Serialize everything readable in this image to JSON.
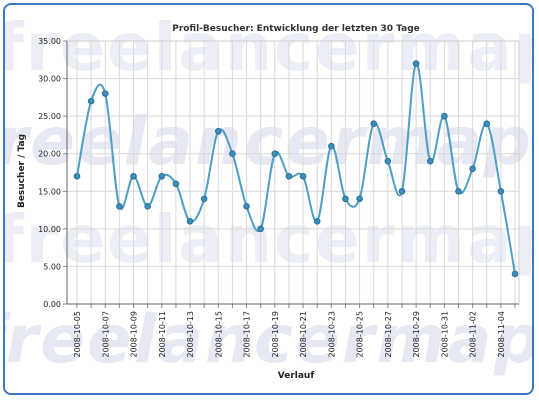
{
  "watermark": {
    "lines": [
      "freelancermapfree",
      "freelancermapfre",
      "freelancermapfree",
      "freelancermapfree"
    ]
  },
  "colors": {
    "frame": "#3e78c4",
    "line": "#4e9fc4",
    "marker": "#3b8fbd",
    "grid": "#d9d9d9"
  },
  "chart_data": {
    "type": "line",
    "title": "Profil-Besucher: Entwicklung der letzten 30 Tage",
    "xlabel": "Verlauf",
    "ylabel": "Besucher / Tag",
    "ylim": [
      0,
      35
    ],
    "yticks": [
      "0.00",
      "5.00",
      "10.00",
      "15.00",
      "20.00",
      "25.00",
      "30.00",
      "35.00"
    ],
    "grid": true,
    "smooth": true,
    "x": [
      "2008-10-05",
      "2008-10-06",
      "2008-10-07",
      "2008-10-08",
      "2008-10-09",
      "2008-10-10",
      "2008-10-11",
      "2008-10-12",
      "2008-10-13",
      "2008-10-14",
      "2008-10-15",
      "2008-10-16",
      "2008-10-17",
      "2008-10-18",
      "2008-10-19",
      "2008-10-20",
      "2008-10-21",
      "2008-10-22",
      "2008-10-23",
      "2008-10-24",
      "2008-10-25",
      "2008-10-26",
      "2008-10-27",
      "2008-10-28",
      "2008-10-29",
      "2008-10-30",
      "2008-10-31",
      "2008-11-01",
      "2008-11-02",
      "2008-11-03",
      "2008-11-04",
      "2008-11-05"
    ],
    "xtick_labels": [
      "2008-10-05",
      "2008-10-07",
      "2008-10-09",
      "2008-10-11",
      "2008-10-13",
      "2008-10-15",
      "2008-10-17",
      "2008-10-19",
      "2008-10-21",
      "2008-10-23",
      "2008-10-25",
      "2008-10-27",
      "2008-10-29",
      "2008-10-31",
      "2008-11-02",
      "2008-11-04"
    ],
    "values": [
      17,
      27,
      28,
      13,
      17,
      13,
      17,
      16,
      11,
      14,
      23,
      20,
      13,
      10,
      20,
      17,
      17,
      11,
      21,
      14,
      14,
      24,
      19,
      15,
      32,
      19,
      25,
      15,
      18,
      24,
      15,
      4
    ]
  }
}
